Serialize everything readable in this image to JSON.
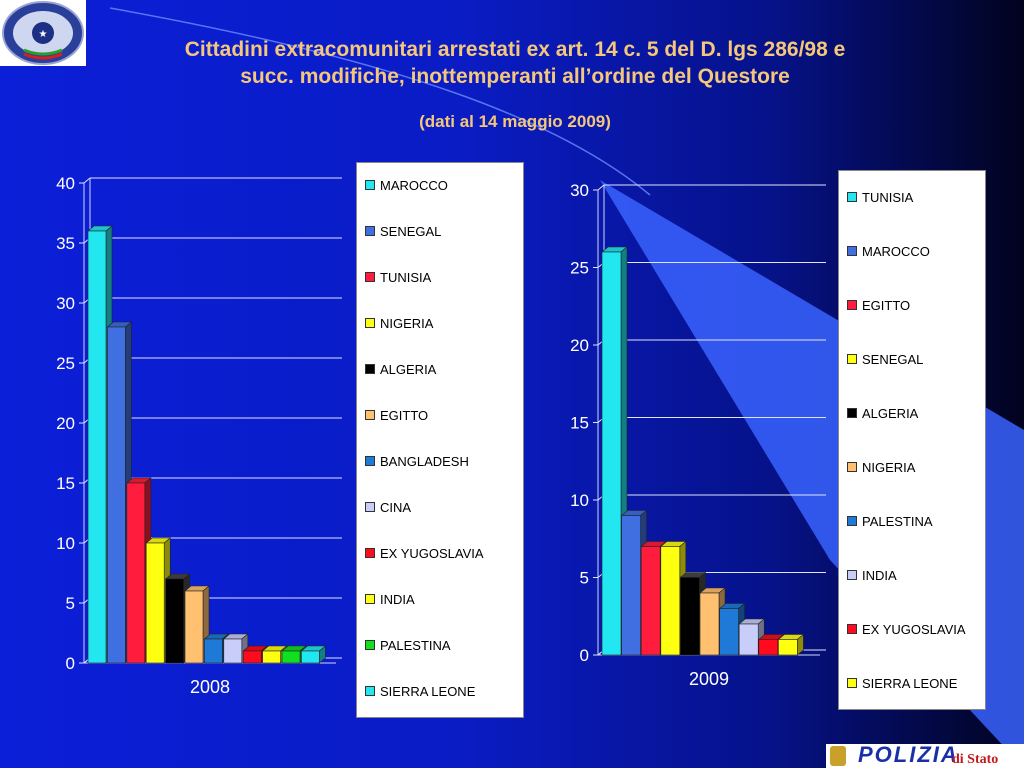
{
  "header": {
    "title_line1": "Cittadini extracomunitari arrestati ex art. 14 c. 5 del D. lgs 286/98 e",
    "title_line2": "succ. modifiche, inottemperanti all’ordine del Questore",
    "subtitle": "(dati al 14 maggio 2009)"
  },
  "logos": {
    "ministry_logo_text": "MINISTERO DELL'INTERNO",
    "footer_logo_text": "POLIZIA",
    "footer_logo_subtext": "di Stato"
  },
  "chart_data": [
    {
      "type": "bar",
      "xlabel": "2008",
      "ylim": [
        0,
        40
      ],
      "yticks": [
        0,
        5,
        10,
        15,
        20,
        25,
        30,
        35,
        40
      ],
      "grid": true,
      "legend_position": "right",
      "series": [
        {
          "name": "MAROCCO",
          "value": 36,
          "color": "#22e6f0"
        },
        {
          "name": "SENEGAL",
          "value": 28,
          "color": "#3f6fe0"
        },
        {
          "name": "TUNISIA",
          "value": 15,
          "color": "#ff1c3c"
        },
        {
          "name": "NIGERIA",
          "value": 10,
          "color": "#ffff10"
        },
        {
          "name": "ALGERIA",
          "value": 7,
          "color": "#000000"
        },
        {
          "name": "EGITTO",
          "value": 6,
          "color": "#ffc070"
        },
        {
          "name": "BANGLADESH",
          "value": 2,
          "color": "#1e7ad6"
        },
        {
          "name": "CINA",
          "value": 2,
          "color": "#c9cdfa"
        },
        {
          "name": "EX YUGOSLAVIA",
          "value": 1,
          "color": "#ff0a1e"
        },
        {
          "name": "INDIA",
          "value": 1,
          "color": "#ffff10"
        },
        {
          "name": "PALESTINA",
          "value": 1,
          "color": "#10e020"
        },
        {
          "name": "SIERRA LEONE",
          "value": 1,
          "color": "#22e6f0"
        }
      ]
    },
    {
      "type": "bar",
      "xlabel": "2009",
      "ylim": [
        0,
        30
      ],
      "yticks": [
        0,
        5,
        10,
        15,
        20,
        25,
        30
      ],
      "grid": true,
      "legend_position": "right",
      "series": [
        {
          "name": "TUNISIA",
          "value": 26,
          "color": "#22e6f0"
        },
        {
          "name": "MAROCCO",
          "value": 9,
          "color": "#3f6fe0"
        },
        {
          "name": "EGITTO",
          "value": 7,
          "color": "#ff1c3c"
        },
        {
          "name": "SENEGAL",
          "value": 7,
          "color": "#ffff10"
        },
        {
          "name": "ALGERIA",
          "value": 5,
          "color": "#000000"
        },
        {
          "name": "NIGERIA",
          "value": 4,
          "color": "#ffc070"
        },
        {
          "name": "PALESTINA",
          "value": 3,
          "color": "#1e7ad6"
        },
        {
          "name": "INDIA",
          "value": 2,
          "color": "#c9cdfa"
        },
        {
          "name": "EX YUGOSLAVIA",
          "value": 1,
          "color": "#ff0a1e"
        },
        {
          "name": "SIERRA LEONE",
          "value": 1,
          "color": "#ffff10"
        }
      ]
    }
  ]
}
